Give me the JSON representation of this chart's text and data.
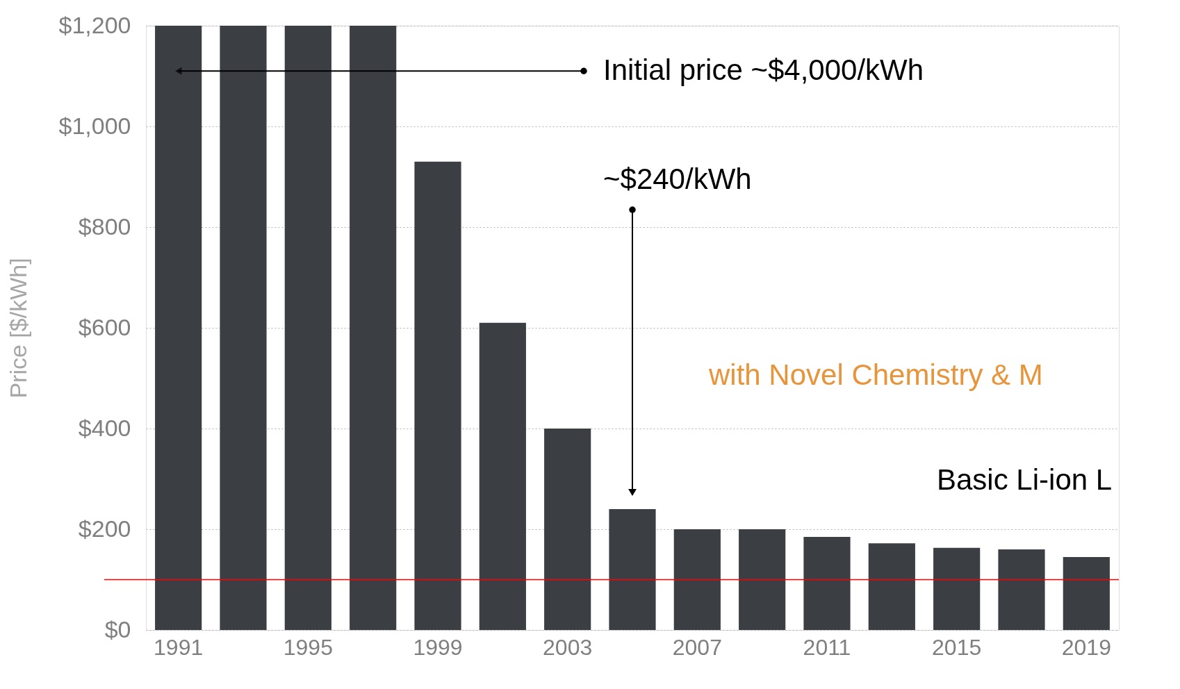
{
  "chart_data": {
    "type": "bar",
    "ylabel": "Price [$/kWh]",
    "categories": [
      "1991",
      null,
      "1995",
      null,
      "1999",
      null,
      "2003",
      null,
      "2007",
      null,
      "2011",
      null,
      "2015",
      null,
      "2019"
    ],
    "values": [
      1200,
      1200,
      1200,
      1200,
      930,
      610,
      400,
      240,
      200,
      200,
      185,
      172,
      163,
      160,
      145
    ],
    "color": "#3b3e43",
    "ylim": [
      0,
      1200
    ],
    "yticks": [
      {
        "value": 0,
        "label": "$0"
      },
      {
        "value": 200,
        "label": "$200"
      },
      {
        "value": 400,
        "label": "$400"
      },
      {
        "value": 600,
        "label": "$600"
      },
      {
        "value": 800,
        "label": "$800"
      },
      {
        "value": 1000,
        "label": "$1,000"
      },
      {
        "value": 1200,
        "label": "$1,200"
      }
    ],
    "grid": "y",
    "ref_lines": [
      {
        "axis": "y",
        "value": 100,
        "color": "#ff0000"
      }
    ],
    "annotations": [
      {
        "text": "Initial price  ~$4,000/kWh",
        "x": "1991",
        "y": 1110
      },
      "~$240/kWh",
      "with Novel Chemistry & M",
      "Basic Li-ion L"
    ]
  }
}
